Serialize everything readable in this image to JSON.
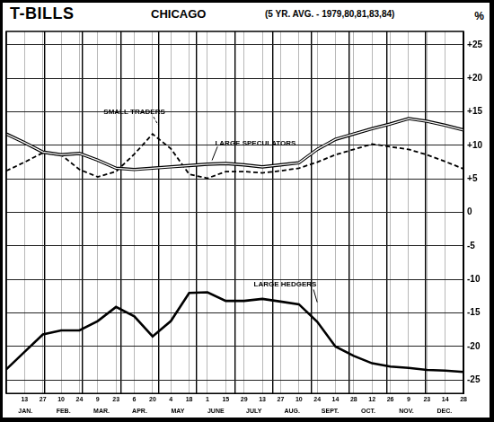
{
  "chart_data": {
    "type": "line",
    "title": "T-BILLS",
    "subtitle": "CHICAGO",
    "annotation": "(5 YR. AVG. - 1979,80,81,83,84)",
    "y_label": "%",
    "categories": [
      null,
      "13",
      "27",
      "10",
      "24",
      "9",
      "23",
      "6",
      "20",
      "4",
      "18",
      "1",
      "15",
      "29",
      "13",
      "27",
      "10",
      "24",
      "14",
      "28",
      "12",
      "26",
      "9",
      "23",
      "14",
      "28"
    ],
    "months": [
      "JAN.",
      "FEB.",
      "MAR.",
      "APR.",
      "MAY",
      "JUNE",
      "JULY",
      "AUG.",
      "SEPT.",
      "OCT.",
      "NOV.",
      "DEC."
    ],
    "series": [
      {
        "name": "SMALL TRADERS",
        "color": "#000000",
        "line_style": "dashed",
        "marker": "none",
        "values": [
          6.2,
          7.5,
          8.9,
          8.6,
          6.4,
          5.3,
          6.1,
          8.7,
          11.7,
          9.5,
          5.7,
          5.1,
          6.1,
          6.1,
          5.9,
          6.2,
          6.6,
          7.5,
          8.6,
          9.4,
          10.2,
          9.8,
          9.4,
          8.6,
          7.6,
          6.5
        ]
      },
      {
        "name": "LARGE SPECULATORS",
        "color": "#000000",
        "line_style": "double",
        "marker": "none",
        "values": [
          11.7,
          10.4,
          9.0,
          8.6,
          8.8,
          7.8,
          6.6,
          6.4,
          6.6,
          6.8,
          7.0,
          7.2,
          7.3,
          7.1,
          6.8,
          7.1,
          7.4,
          9.4,
          10.9,
          11.7,
          12.5,
          13.2,
          14.0,
          13.6,
          13.0,
          12.3
        ]
      },
      {
        "name": "LARGE HEDGERS",
        "color": "#000000",
        "line_style": "solid",
        "marker": "none",
        "values": [
          -23.4,
          -20.8,
          -18.2,
          -17.6,
          -17.6,
          -16.2,
          -14.1,
          -15.5,
          -18.5,
          -16.2,
          -12.0,
          -11.9,
          -13.2,
          -13.2,
          -12.9,
          -13.3,
          -13.7,
          -16.3,
          -20.0,
          -21.4,
          -22.5,
          -23.0,
          -23.2,
          -23.5,
          -23.6,
          -23.8
        ]
      }
    ],
    "ylim": [
      -27,
      27
    ],
    "yticks": [
      {
        "value": 25,
        "label": "+25"
      },
      {
        "value": 20,
        "label": "+20"
      },
      {
        "value": 15,
        "label": "+15"
      },
      {
        "value": 10,
        "label": "+10"
      },
      {
        "value": 5,
        "label": "+5"
      },
      0,
      -5,
      -10,
      -15,
      -20,
      -25
    ],
    "grid": true
  }
}
